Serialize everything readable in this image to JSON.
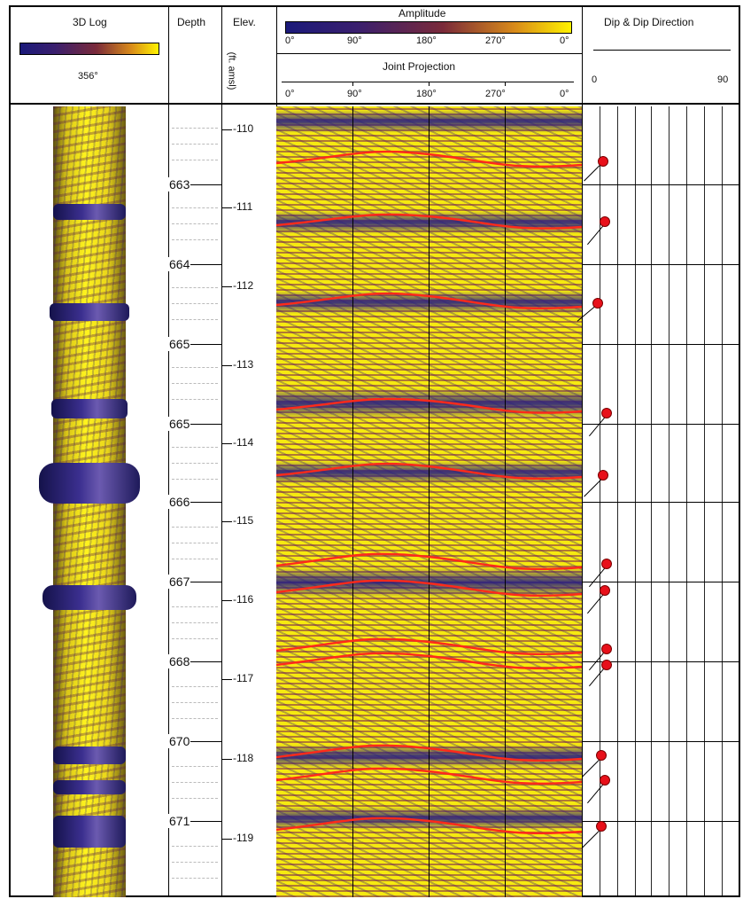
{
  "header": {
    "log3d_title": "3D Log",
    "log3d_value": "356°",
    "depth_title": "Depth",
    "elev_title": "Elev.",
    "elev_units": "(ft. amsl)",
    "amplitude_title": "Amplitude",
    "joint_projection_title": "Joint Projection",
    "azimuth_ticks": [
      "0°",
      "90°",
      "180°",
      "270°",
      "0°"
    ],
    "dip_title": "Dip & Dip Direction",
    "dip_scale": [
      "0",
      "90"
    ]
  },
  "depth_labels": [
    "663",
    "664",
    "665",
    "665",
    "666",
    "667",
    "668",
    "670",
    "671"
  ],
  "elev_labels": [
    "-110",
    "-111",
    "-112",
    "-113",
    "-114",
    "-115",
    "-116",
    "-117",
    "-118",
    "-119"
  ],
  "colors": {
    "amplitude_low": "#1b1a7a",
    "amplitude_high": "#fff200",
    "joint_sinusoid": "#ff2a1a",
    "tadpole": "#e8101a"
  }
}
